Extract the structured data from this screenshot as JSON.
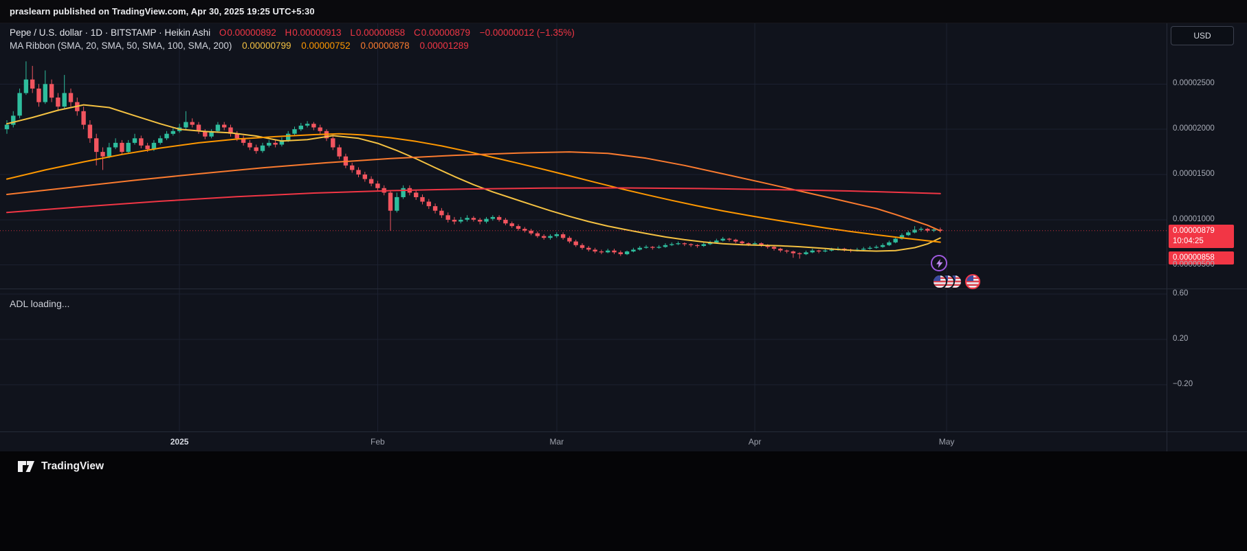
{
  "header": {
    "publish_text": "praslearn published on TradingView.com, Apr 30, 2025 19:25 UTC+5:30"
  },
  "toolbar": {
    "currency_label": "USD"
  },
  "legend": {
    "symbol_title": "Pepe / U.S. dollar · 1D · BITSTAMP · Heikin Ashi",
    "o_key": "O",
    "open": "0.00000892",
    "h_key": "H",
    "high": "0.00000913",
    "l_key": "L",
    "low": "0.00000858",
    "c_key": "C",
    "close": "0.00000879",
    "change": "−0.00000012 (−1.35%)",
    "ma_title": "MA Ribbon (SMA, 20, SMA, 50, SMA, 100, SMA, 200)",
    "ma20": "0.00000799",
    "ma50": "0.00000752",
    "ma100": "0.00000878",
    "ma200": "0.00001289"
  },
  "price_axis": {
    "current_price": "0.00000879",
    "countdown": "10:04:25",
    "secondary_price": "0.00000858"
  },
  "lower_pane": {
    "status_text": "ADL loading..."
  },
  "footer": {
    "brand": "TradingView"
  },
  "chart_data": {
    "type": "candlestick",
    "style": "Heikin Ashi",
    "symbol": "PEPE / USD",
    "interval": "1D",
    "exchange": "BITSTAMP",
    "unit_note": "all candle and MA values are in 1e-8 USD",
    "bars": 147,
    "colors": {
      "up": "#2ebd9d",
      "down": "#f2555f"
    },
    "main_pane": {
      "ylim": [
        240,
        3170
      ],
      "ticks": [
        {
          "value": 2500,
          "label": "0.00002500"
        },
        {
          "value": 2000,
          "label": "0.00002000"
        },
        {
          "value": 1500,
          "label": "0.00001500"
        },
        {
          "value": 1000,
          "label": "0.00001000"
        },
        {
          "value": 500,
          "label": "0.00000500"
        }
      ]
    },
    "indicator_pane": {
      "name": "ADL",
      "ylim": [
        -0.612,
        0.642
      ],
      "ticks": [
        {
          "value": 0.6,
          "label": "0.60"
        },
        {
          "value": 0.2,
          "label": "0.20"
        },
        {
          "value": -0.2,
          "label": "−0.20"
        }
      ]
    },
    "x_ticks": [
      {
        "label": "2025",
        "index": 27,
        "emphasis": true
      },
      {
        "label": "Feb",
        "index": 58
      },
      {
        "label": "Mar",
        "index": 86
      },
      {
        "label": "Apr",
        "index": 117
      },
      {
        "label": "May",
        "index": 147
      }
    ],
    "price_line": 879,
    "candles": [
      [
        2000,
        2100,
        1950,
        2050
      ],
      [
        2050,
        2200,
        2020,
        2150
      ],
      [
        2150,
        2450,
        2120,
        2400
      ],
      [
        2400,
        2750,
        2380,
        2550
      ],
      [
        2550,
        2700,
        2400,
        2450
      ],
      [
        2450,
        2500,
        2250,
        2300
      ],
      [
        2300,
        2650,
        2280,
        2500
      ],
      [
        2500,
        2550,
        2300,
        2350
      ],
      [
        2350,
        2400,
        2200,
        2250
      ],
      [
        2250,
        2600,
        2230,
        2400
      ],
      [
        2400,
        2450,
        2250,
        2300
      ],
      [
        2300,
        2350,
        2150,
        2200
      ],
      [
        2200,
        2250,
        2000,
        2050
      ],
      [
        2050,
        2100,
        1850,
        1900
      ],
      [
        1900,
        1950,
        1600,
        1750
      ],
      [
        1750,
        1800,
        1550,
        1700
      ],
      [
        1700,
        1850,
        1680,
        1800
      ],
      [
        1800,
        1900,
        1780,
        1850
      ],
      [
        1850,
        1880,
        1720,
        1750
      ],
      [
        1750,
        1880,
        1730,
        1850
      ],
      [
        1850,
        1950,
        1830,
        1900
      ],
      [
        1900,
        1930,
        1790,
        1820
      ],
      [
        1820,
        1850,
        1750,
        1780
      ],
      [
        1780,
        1880,
        1760,
        1850
      ],
      [
        1850,
        1930,
        1830,
        1900
      ],
      [
        1900,
        1980,
        1880,
        1950
      ],
      [
        1950,
        2010,
        1930,
        1980
      ],
      [
        1980,
        2060,
        1960,
        2020
      ],
      [
        2020,
        2200,
        2000,
        2080
      ],
      [
        2080,
        2120,
        2020,
        2050
      ],
      [
        2050,
        2080,
        1950,
        1980
      ],
      [
        1980,
        2000,
        1890,
        1920
      ],
      [
        1920,
        2000,
        1900,
        1980
      ],
      [
        1980,
        2080,
        1960,
        2050
      ],
      [
        2050,
        2080,
        1990,
        2020
      ],
      [
        2020,
        2050,
        1920,
        1950
      ],
      [
        1950,
        1980,
        1870,
        1900
      ],
      [
        1900,
        1930,
        1820,
        1850
      ],
      [
        1850,
        1880,
        1770,
        1800
      ],
      [
        1800,
        1830,
        1730,
        1760
      ],
      [
        1760,
        1850,
        1740,
        1820
      ],
      [
        1820,
        1880,
        1800,
        1850
      ],
      [
        1850,
        1880,
        1800,
        1830
      ],
      [
        1830,
        1910,
        1810,
        1880
      ],
      [
        1880,
        1980,
        1860,
        1950
      ],
      [
        1950,
        2030,
        1930,
        2000
      ],
      [
        2000,
        2070,
        1980,
        2040
      ],
      [
        2040,
        2090,
        2020,
        2060
      ],
      [
        2060,
        2080,
        1990,
        2020
      ],
      [
        2020,
        2050,
        1950,
        1980
      ],
      [
        1980,
        2000,
        1870,
        1900
      ],
      [
        1900,
        1930,
        1770,
        1800
      ],
      [
        1800,
        1830,
        1670,
        1700
      ],
      [
        1700,
        1730,
        1570,
        1600
      ],
      [
        1600,
        1630,
        1520,
        1550
      ],
      [
        1550,
        1580,
        1470,
        1500
      ],
      [
        1500,
        1530,
        1420,
        1450
      ],
      [
        1450,
        1480,
        1370,
        1400
      ],
      [
        1400,
        1430,
        1320,
        1350
      ],
      [
        1350,
        1380,
        1270,
        1300
      ],
      [
        1300,
        1320,
        880,
        1100
      ],
      [
        1100,
        1300,
        1080,
        1250
      ],
      [
        1250,
        1380,
        1230,
        1350
      ],
      [
        1350,
        1380,
        1270,
        1300
      ],
      [
        1300,
        1330,
        1220,
        1250
      ],
      [
        1250,
        1280,
        1170,
        1200
      ],
      [
        1200,
        1230,
        1120,
        1150
      ],
      [
        1150,
        1180,
        1070,
        1100
      ],
      [
        1100,
        1130,
        1020,
        1050
      ],
      [
        1050,
        1080,
        970,
        1000
      ],
      [
        1000,
        1030,
        950,
        980
      ],
      [
        980,
        1030,
        960,
        1000
      ],
      [
        1000,
        1050,
        980,
        1020
      ],
      [
        1020,
        1040,
        980,
        1000
      ],
      [
        1000,
        1020,
        950,
        980
      ],
      [
        980,
        1030,
        960,
        1010
      ],
      [
        1010,
        1050,
        990,
        1030
      ],
      [
        1030,
        1050,
        980,
        1000
      ],
      [
        1000,
        1020,
        940,
        960
      ],
      [
        960,
        980,
        910,
        930
      ],
      [
        930,
        950,
        880,
        900
      ],
      [
        900,
        920,
        860,
        880
      ],
      [
        880,
        900,
        830,
        850
      ],
      [
        850,
        870,
        800,
        820
      ],
      [
        820,
        840,
        780,
        800
      ],
      [
        800,
        840,
        780,
        820
      ],
      [
        820,
        860,
        800,
        840
      ],
      [
        840,
        860,
        780,
        800
      ],
      [
        800,
        820,
        740,
        760
      ],
      [
        760,
        780,
        700,
        720
      ],
      [
        720,
        740,
        670,
        690
      ],
      [
        690,
        710,
        650,
        670
      ],
      [
        670,
        690,
        630,
        650
      ],
      [
        650,
        670,
        620,
        640
      ],
      [
        640,
        680,
        630,
        660
      ],
      [
        660,
        680,
        620,
        640
      ],
      [
        640,
        660,
        600,
        620
      ],
      [
        620,
        660,
        610,
        650
      ],
      [
        650,
        690,
        640,
        670
      ],
      [
        670,
        710,
        660,
        690
      ],
      [
        690,
        720,
        680,
        700
      ],
      [
        700,
        710,
        670,
        690
      ],
      [
        690,
        720,
        680,
        700
      ],
      [
        700,
        740,
        690,
        720
      ],
      [
        720,
        750,
        710,
        730
      ],
      [
        730,
        760,
        720,
        740
      ],
      [
        740,
        750,
        710,
        730
      ],
      [
        730,
        740,
        700,
        720
      ],
      [
        720,
        730,
        690,
        710
      ],
      [
        710,
        750,
        700,
        730
      ],
      [
        730,
        770,
        720,
        750
      ],
      [
        750,
        790,
        740,
        770
      ],
      [
        770,
        810,
        760,
        790
      ],
      [
        790,
        800,
        760,
        780
      ],
      [
        780,
        790,
        740,
        760
      ],
      [
        760,
        770,
        720,
        740
      ],
      [
        740,
        750,
        710,
        730
      ],
      [
        730,
        760,
        720,
        740
      ],
      [
        740,
        750,
        700,
        720
      ],
      [
        720,
        730,
        680,
        700
      ],
      [
        700,
        710,
        660,
        680
      ],
      [
        680,
        690,
        640,
        660
      ],
      [
        660,
        670,
        630,
        650
      ],
      [
        650,
        660,
        580,
        630
      ],
      [
        630,
        640,
        570,
        620
      ],
      [
        620,
        660,
        610,
        640
      ],
      [
        640,
        680,
        630,
        660
      ],
      [
        660,
        670,
        630,
        650
      ],
      [
        650,
        680,
        640,
        660
      ],
      [
        660,
        690,
        650,
        670
      ],
      [
        670,
        700,
        660,
        680
      ],
      [
        680,
        690,
        650,
        670
      ],
      [
        670,
        680,
        640,
        660
      ],
      [
        660,
        690,
        650,
        670
      ],
      [
        670,
        700,
        660,
        680
      ],
      [
        680,
        710,
        670,
        690
      ],
      [
        690,
        720,
        680,
        700
      ],
      [
        700,
        740,
        690,
        720
      ],
      [
        720,
        770,
        710,
        750
      ],
      [
        750,
        810,
        740,
        790
      ],
      [
        790,
        850,
        780,
        830
      ],
      [
        830,
        880,
        820,
        860
      ],
      [
        860,
        930,
        850,
        890
      ],
      [
        890,
        920,
        870,
        900
      ],
      [
        900,
        910,
        860,
        880
      ],
      [
        880,
        905,
        865,
        892
      ],
      [
        892,
        913,
        858,
        879
      ]
    ],
    "ma_series": [
      {
        "name": "SMA 20",
        "color": "#f5c242",
        "points": [
          [
            0,
            2060
          ],
          [
            4,
            2130
          ],
          [
            8,
            2210
          ],
          [
            12,
            2270
          ],
          [
            16,
            2240
          ],
          [
            20,
            2150
          ],
          [
            24,
            2060
          ],
          [
            27,
            2000
          ],
          [
            31,
            1975
          ],
          [
            35,
            1960
          ],
          [
            39,
            1925
          ],
          [
            43,
            1870
          ],
          [
            47,
            1885
          ],
          [
            51,
            1930
          ],
          [
            55,
            1900
          ],
          [
            58,
            1845
          ],
          [
            61,
            1765
          ],
          [
            64,
            1675
          ],
          [
            67,
            1575
          ],
          [
            70,
            1478
          ],
          [
            73,
            1388
          ],
          [
            76,
            1308
          ],
          [
            79,
            1238
          ],
          [
            82,
            1168
          ],
          [
            85,
            1100
          ],
          [
            88,
            1038
          ],
          [
            91,
            980
          ],
          [
            94,
            930
          ],
          [
            97,
            888
          ],
          [
            100,
            848
          ],
          [
            103,
            810
          ],
          [
            106,
            780
          ],
          [
            109,
            755
          ],
          [
            112,
            735
          ],
          [
            115,
            724
          ],
          [
            118,
            718
          ],
          [
            121,
            712
          ],
          [
            124,
            702
          ],
          [
            127,
            688
          ],
          [
            130,
            672
          ],
          [
            133,
            660
          ],
          [
            136,
            654
          ],
          [
            139,
            660
          ],
          [
            142,
            692
          ],
          [
            144,
            733
          ],
          [
            146,
            799
          ]
        ]
      },
      {
        "name": "SMA 50",
        "color": "#ff9800",
        "points": [
          [
            0,
            1450
          ],
          [
            6,
            1550
          ],
          [
            12,
            1640
          ],
          [
            18,
            1722
          ],
          [
            24,
            1792
          ],
          [
            30,
            1850
          ],
          [
            36,
            1892
          ],
          [
            42,
            1918
          ],
          [
            48,
            1940
          ],
          [
            52,
            1950
          ],
          [
            56,
            1936
          ],
          [
            60,
            1906
          ],
          [
            64,
            1866
          ],
          [
            68,
            1816
          ],
          [
            72,
            1756
          ],
          [
            76,
            1690
          ],
          [
            80,
            1624
          ],
          [
            84,
            1556
          ],
          [
            88,
            1486
          ],
          [
            92,
            1414
          ],
          [
            96,
            1344
          ],
          [
            100,
            1278
          ],
          [
            104,
            1214
          ],
          [
            108,
            1154
          ],
          [
            112,
            1098
          ],
          [
            116,
            1048
          ],
          [
            120,
            1000
          ],
          [
            124,
            954
          ],
          [
            128,
            910
          ],
          [
            132,
            870
          ],
          [
            136,
            834
          ],
          [
            140,
            800
          ],
          [
            143,
            776
          ],
          [
            146,
            752
          ]
        ]
      },
      {
        "name": "SMA 100",
        "color": "#fb7b2f",
        "points": [
          [
            0,
            1280
          ],
          [
            10,
            1358
          ],
          [
            20,
            1436
          ],
          [
            30,
            1508
          ],
          [
            40,
            1574
          ],
          [
            50,
            1630
          ],
          [
            60,
            1676
          ],
          [
            70,
            1712
          ],
          [
            80,
            1738
          ],
          [
            88,
            1750
          ],
          [
            94,
            1734
          ],
          [
            100,
            1680
          ],
          [
            106,
            1600
          ],
          [
            112,
            1508
          ],
          [
            118,
            1414
          ],
          [
            124,
            1318
          ],
          [
            130,
            1222
          ],
          [
            136,
            1124
          ],
          [
            139,
            1058
          ],
          [
            142,
            988
          ],
          [
            144,
            940
          ],
          [
            146,
            878
          ]
        ]
      },
      {
        "name": "SMA 200",
        "color": "#f23645",
        "points": [
          [
            0,
            1080
          ],
          [
            12,
            1145
          ],
          [
            24,
            1205
          ],
          [
            36,
            1255
          ],
          [
            48,
            1295
          ],
          [
            60,
            1322
          ],
          [
            72,
            1340
          ],
          [
            84,
            1350
          ],
          [
            96,
            1352
          ],
          [
            108,
            1345
          ],
          [
            120,
            1333
          ],
          [
            132,
            1318
          ],
          [
            140,
            1302
          ],
          [
            146,
            1289
          ]
        ]
      }
    ]
  }
}
